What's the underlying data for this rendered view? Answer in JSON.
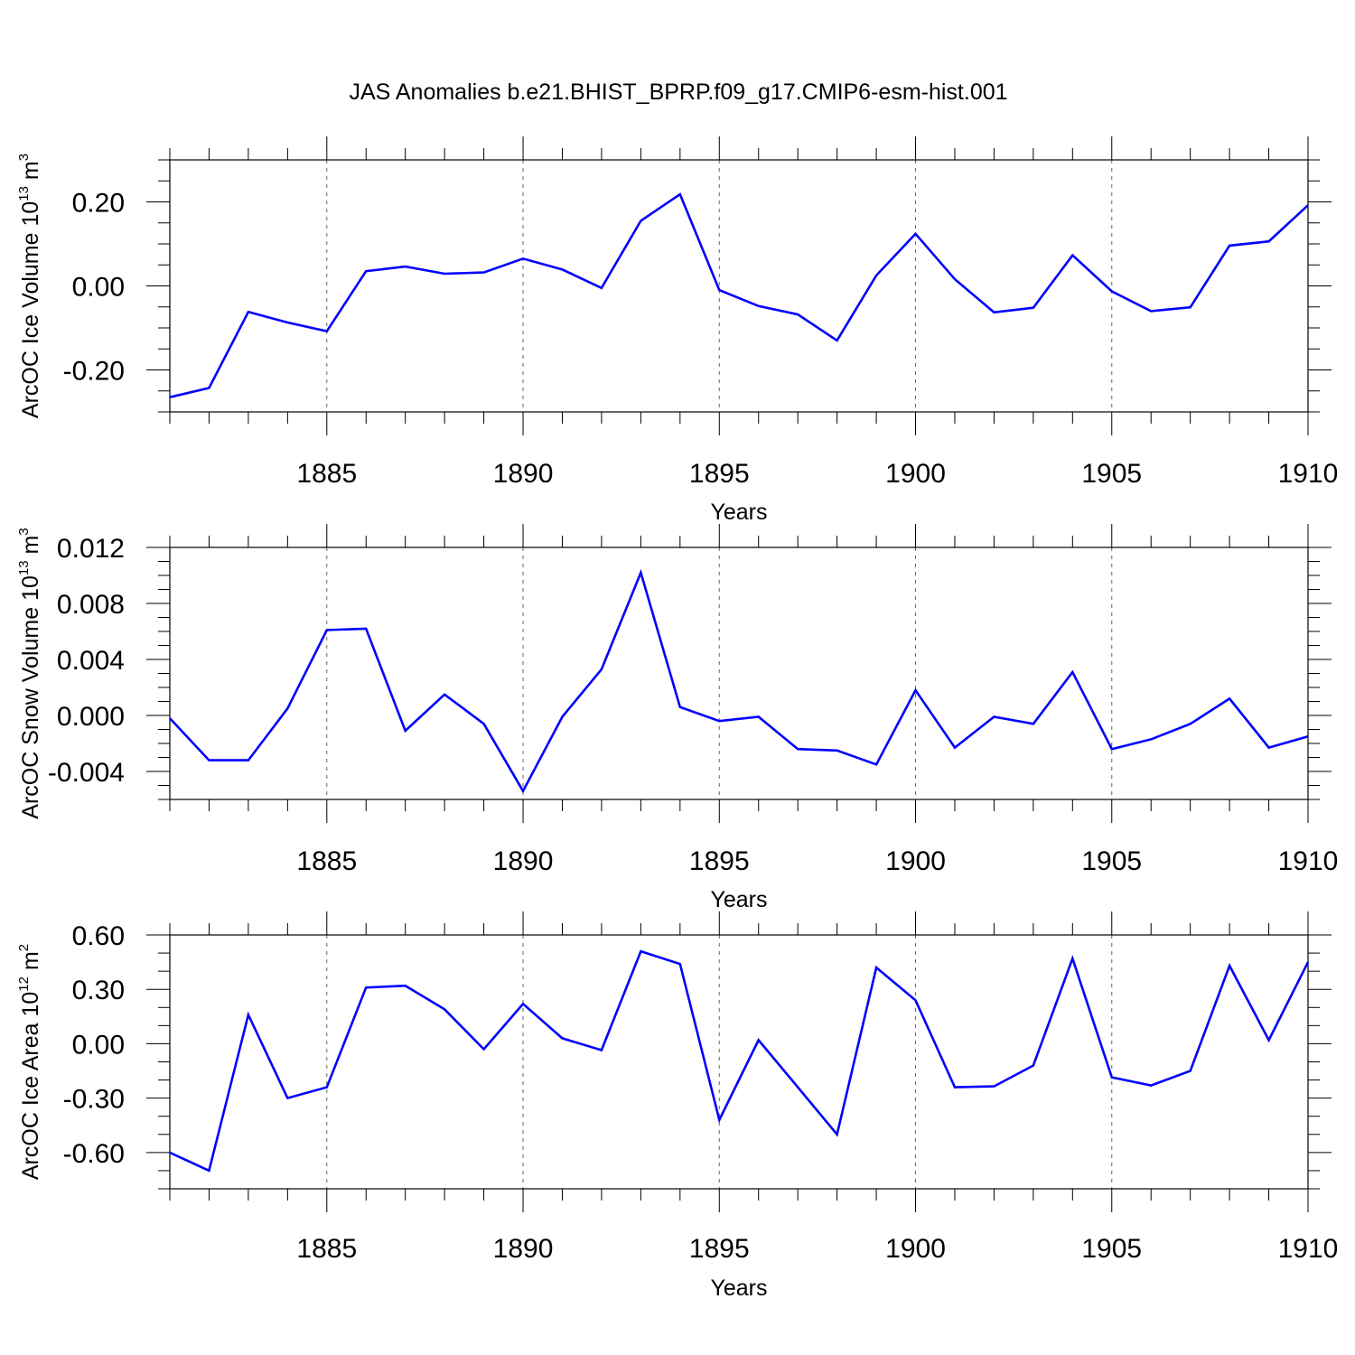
{
  "title": "JAS Anomalies b.e21.BHIST_BPRP.f09_g17.CMIP6-esm-hist.001",
  "chart_data": [
    {
      "type": "line",
      "xlabel": "Years",
      "ylabel": {
        "base": "ArcOC Ice Volume 10",
        "exp": "13",
        "unit": " m",
        "unit_exp": "3"
      },
      "xlim": [
        1881,
        1910
      ],
      "ylim": [
        -0.3,
        0.3
      ],
      "xticks": [
        1885,
        1890,
        1895,
        1900,
        1905,
        1910
      ],
      "xtick_labels": [
        "1885",
        "1890",
        "1895",
        "1900",
        "1905",
        "1910"
      ],
      "yticks": [
        -0.2,
        0.0,
        0.2
      ],
      "ytick_labels": [
        "-0.20",
        "0.00",
        "0.20"
      ],
      "yminor_step": 0.05,
      "line_color": "#0000ff",
      "x": [
        1881,
        1882,
        1883,
        1884,
        1885,
        1886,
        1887,
        1888,
        1889,
        1890,
        1891,
        1892,
        1893,
        1894,
        1895,
        1896,
        1897,
        1898,
        1899,
        1900,
        1901,
        1902,
        1903,
        1904,
        1905,
        1906,
        1907,
        1908,
        1909,
        1910
      ],
      "values": [
        -0.265,
        -0.243,
        -0.062,
        -0.087,
        -0.108,
        0.035,
        0.046,
        0.029,
        0.032,
        0.065,
        0.039,
        -0.005,
        0.155,
        0.218,
        -0.01,
        -0.048,
        -0.068,
        -0.13,
        0.025,
        0.124,
        0.016,
        -0.063,
        -0.052,
        0.073,
        -0.013,
        -0.06,
        -0.051,
        0.096,
        0.106,
        0.192
      ]
    },
    {
      "type": "line",
      "xlabel": "Years",
      "ylabel": {
        "base": "ArcOC Snow Volume 10",
        "exp": "13",
        "unit": " m",
        "unit_exp": "3"
      },
      "xlim": [
        1881,
        1910
      ],
      "ylim": [
        -0.006,
        0.012
      ],
      "xticks": [
        1885,
        1890,
        1895,
        1900,
        1905,
        1910
      ],
      "xtick_labels": [
        "1885",
        "1890",
        "1895",
        "1900",
        "1905",
        "1910"
      ],
      "yticks": [
        -0.004,
        0.0,
        0.004,
        0.008,
        0.012
      ],
      "ytick_labels": [
        "-0.004",
        "0.000",
        "0.004",
        "0.008",
        "0.012"
      ],
      "yminor_step": 0.001,
      "line_color": "#0000ff",
      "x": [
        1881,
        1882,
        1883,
        1884,
        1885,
        1886,
        1887,
        1888,
        1889,
        1890,
        1891,
        1892,
        1893,
        1894,
        1895,
        1896,
        1897,
        1898,
        1899,
        1900,
        1901,
        1902,
        1903,
        1904,
        1905,
        1906,
        1907,
        1908,
        1909,
        1910
      ],
      "values": [
        -0.0002,
        -0.0032,
        -0.0032,
        0.0005,
        0.0061,
        0.0062,
        -0.0011,
        0.0015,
        -0.0006,
        -0.0054,
        -0.0001,
        0.0033,
        0.0102,
        0.0006,
        -0.0004,
        -0.0001,
        -0.0024,
        -0.0025,
        -0.0035,
        0.0018,
        -0.0023,
        -0.0001,
        -0.0006,
        0.0031,
        -0.0024,
        -0.0017,
        -0.0006,
        0.0012,
        -0.0023,
        -0.0015
      ]
    },
    {
      "type": "line",
      "xlabel": "Years",
      "ylabel": {
        "base": "ArcOC Ice Area 10",
        "exp": "12",
        "unit": " m",
        "unit_exp": "2"
      },
      "xlim": [
        1881,
        1910
      ],
      "ylim": [
        -0.8,
        0.6
      ],
      "xticks": [
        1885,
        1890,
        1895,
        1900,
        1905,
        1910
      ],
      "xtick_labels": [
        "1885",
        "1890",
        "1895",
        "1900",
        "1905",
        "1910"
      ],
      "yticks": [
        -0.6,
        -0.3,
        0.0,
        0.3,
        0.6
      ],
      "ytick_labels": [
        "-0.60",
        "-0.30",
        "0.00",
        "0.30",
        "0.60"
      ],
      "yminor_step": 0.1,
      "line_color": "#0000ff",
      "x": [
        1881,
        1882,
        1883,
        1884,
        1885,
        1886,
        1887,
        1888,
        1889,
        1890,
        1891,
        1892,
        1893,
        1894,
        1895,
        1896,
        1897,
        1898,
        1899,
        1900,
        1901,
        1902,
        1903,
        1904,
        1905,
        1906,
        1907,
        1908,
        1909,
        1910
      ],
      "values": [
        -0.6,
        -0.7,
        0.16,
        -0.3,
        -0.24,
        0.31,
        0.32,
        0.19,
        -0.03,
        0.22,
        0.03,
        -0.035,
        0.51,
        0.44,
        -0.42,
        0.02,
        -0.24,
        -0.5,
        0.42,
        0.24,
        -0.24,
        -0.235,
        -0.12,
        0.47,
        -0.185,
        -0.23,
        -0.15,
        0.43,
        0.02,
        0.45
      ]
    }
  ]
}
